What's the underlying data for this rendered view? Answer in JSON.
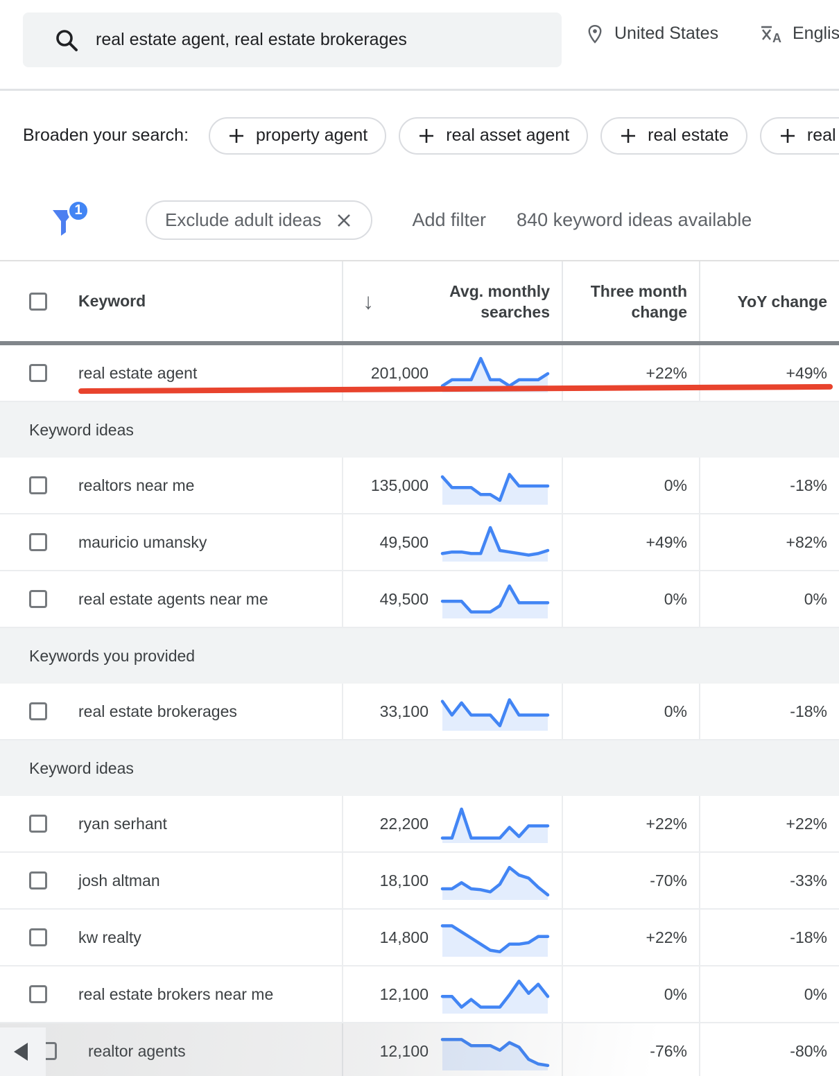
{
  "search": {
    "query": "real estate agent, real estate brokerages",
    "location": "United States",
    "language": "English"
  },
  "broaden": {
    "label": "Broaden your search:",
    "chips": [
      "property agent",
      "real asset agent",
      "real estate",
      "real es"
    ]
  },
  "filterbar": {
    "badge_count": "1",
    "active_filter": "Exclude adult ideas",
    "add_filter_label": "Add filter",
    "count_text": "840 keyword ideas available"
  },
  "table": {
    "headers": {
      "keyword": "Keyword",
      "avg_monthly_searches": "Avg. monthly searches",
      "three_month_change": "Three month change",
      "yoy_change": "YoY change"
    },
    "rows": [
      {
        "type": "data",
        "keyword": "real estate agent",
        "searches": "201,000",
        "three_month": "+22%",
        "yoy": "+49%",
        "trend": [
          1,
          3,
          3,
          3,
          10,
          3,
          3,
          1,
          3,
          3,
          3,
          5
        ],
        "annotated": true
      },
      {
        "type": "section",
        "label": "Keyword ideas"
      },
      {
        "type": "data",
        "keyword": "realtors near me",
        "searches": "135,000",
        "three_month": "0%",
        "yoy": "-18%",
        "trend": [
          8,
          4.5,
          4.5,
          4.5,
          2.2,
          2.2,
          0.3,
          8.8,
          5,
          5,
          5,
          5
        ]
      },
      {
        "type": "data",
        "keyword": "mauricio umansky",
        "searches": "49,500",
        "three_month": "+49%",
        "yoy": "+82%",
        "trend": [
          1.5,
          2,
          2,
          1.5,
          1.5,
          10,
          2.5,
          2,
          1.5,
          1,
          1.5,
          2.5
        ]
      },
      {
        "type": "data",
        "keyword": "real estate agents near me",
        "searches": "49,500",
        "three_month": "0%",
        "yoy": "0%",
        "trend": [
          4.5,
          4.5,
          4.5,
          1,
          1,
          1,
          3,
          9.5,
          4,
          4,
          4,
          4
        ]
      },
      {
        "type": "section",
        "label": "Keywords you provided"
      },
      {
        "type": "data",
        "keyword": "real estate brokerages",
        "searches": "33,100",
        "three_month": "0%",
        "yoy": "-18%",
        "trend": [
          8.5,
          4,
          8,
          4,
          4,
          4,
          0.5,
          9,
          4,
          4,
          4,
          4
        ]
      },
      {
        "type": "section",
        "label": "Keyword ideas"
      },
      {
        "type": "data",
        "keyword": "ryan serhant",
        "searches": "22,200",
        "three_month": "+22%",
        "yoy": "+22%",
        "trend": [
          0.5,
          0.5,
          10,
          0.5,
          0.5,
          0.5,
          0.5,
          4,
          1,
          4.5,
          4.5,
          4.5
        ]
      },
      {
        "type": "data",
        "keyword": "josh altman",
        "searches": "18,100",
        "three_month": "-70%",
        "yoy": "-33%",
        "trend": [
          2.5,
          2.5,
          4.5,
          2.5,
          2.2,
          1.5,
          4,
          9.5,
          7,
          6,
          3,
          0.5
        ]
      },
      {
        "type": "data",
        "keyword": "kw realty",
        "searches": "14,800",
        "three_month": "+22%",
        "yoy": "-18%",
        "trend": [
          9,
          9,
          7,
          5,
          3,
          1,
          0.5,
          3,
          3,
          3.5,
          5.5,
          5.5
        ]
      },
      {
        "type": "data",
        "keyword": "real estate brokers near me",
        "searches": "12,100",
        "three_month": "0%",
        "yoy": "0%",
        "trend": [
          4.5,
          4.5,
          1,
          3.5,
          1,
          1,
          1,
          5,
          9.5,
          5.5,
          8.5,
          4.5
        ]
      },
      {
        "type": "data",
        "keyword": "realtor agents",
        "searches": "12,100",
        "three_month": "-76%",
        "yoy": "-80%",
        "trend": [
          9,
          9,
          9,
          7,
          7,
          7,
          5.5,
          8,
          6.5,
          2.5,
          1,
          0.5
        ],
        "partially_obscured": true
      }
    ]
  },
  "colors": {
    "spark_line": "#4285f4",
    "spark_fill": "#e3edfd",
    "annotation_red": "#e8432d",
    "badge_blue": "#4285f4",
    "funnel_blue": "#4d7ff0"
  }
}
